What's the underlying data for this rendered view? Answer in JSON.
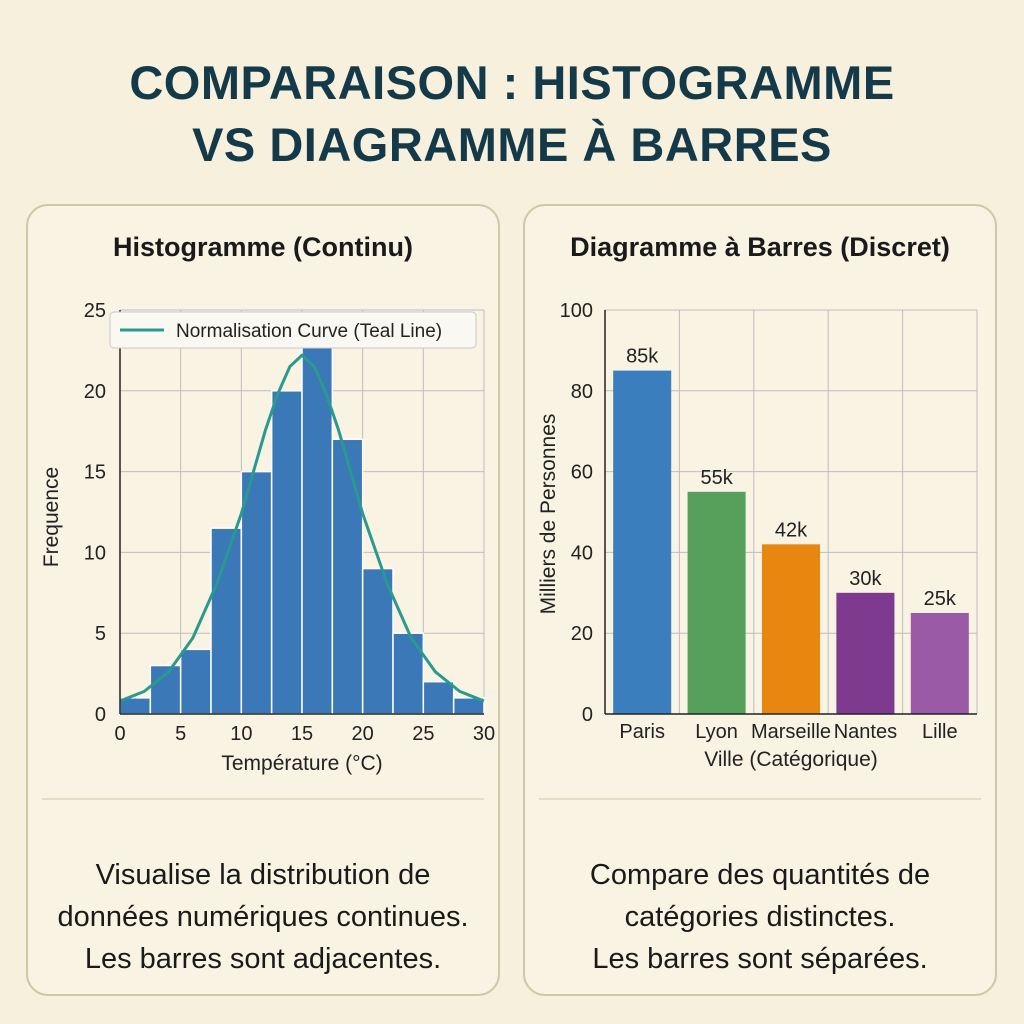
{
  "title": {
    "line1": "COMPARAISON : HISTOGRAMME",
    "line2": "VS DIAGRAMME À BARRES"
  },
  "left_panel": {
    "title": "Histogramme (Continu)",
    "description": [
      "Visualise la distribution de",
      "données numériques continues.",
      "Les barres sont adjacentes."
    ]
  },
  "right_panel": {
    "title": "Diagramme à Barres (Discret)",
    "description": [
      "Compare des quantités de",
      "catégories distinctes.",
      "Les barres sont séparées."
    ]
  },
  "colors": {
    "background": "#f6f0dc",
    "title": "#143a4a",
    "hist_bar": "#3a78b8",
    "curve": "#2a9a8e"
  },
  "chart_data": [
    {
      "type": "bar",
      "subtype": "histogram",
      "bin_edges": [
        0,
        2.5,
        5,
        7.5,
        10,
        12.5,
        15,
        17.5,
        20,
        22.5,
        25,
        27.5,
        30
      ],
      "values": [
        1,
        3,
        4,
        11.5,
        15,
        20,
        23,
        17,
        9,
        5,
        2,
        1
      ],
      "curve": {
        "name": "Normalisation Curve (Teal Line)",
        "x": [
          0,
          2,
          4,
          6,
          8,
          10,
          12,
          13,
          14,
          15,
          16,
          17,
          18,
          20,
          22,
          24,
          26,
          28,
          30
        ],
        "y": [
          0.8,
          1.4,
          2.6,
          4.7,
          8.1,
          12.4,
          17.6,
          19.8,
          21.5,
          22.2,
          21.5,
          19.8,
          17.6,
          12.4,
          8.1,
          4.7,
          2.6,
          1.4,
          0.8
        ]
      },
      "xlabel": "Température (°C)",
      "ylabel": "Frequence",
      "xlim": [
        0,
        30
      ],
      "ylim": [
        0,
        25
      ],
      "xticks": [
        0,
        5,
        10,
        15,
        20,
        25,
        30
      ],
      "yticks": [
        0,
        5,
        10,
        15,
        20,
        25
      ],
      "grid": true,
      "legend_position": "top"
    },
    {
      "type": "bar",
      "categories": [
        "Paris",
        "Lyon",
        "Marseille",
        "Nantes",
        "Lille"
      ],
      "values": [
        85,
        55,
        42,
        30,
        25
      ],
      "data_labels": [
        "85k",
        "55k",
        "42k",
        "30k",
        "25k"
      ],
      "colors": [
        "#3a7ebd",
        "#57a05c",
        "#e8870f",
        "#7e3a8e",
        "#9a5aa6"
      ],
      "xlabel": "Ville (Catégorique)",
      "ylabel": "Milliers de Personnes",
      "ylim": [
        0,
        100
      ],
      "yticks": [
        0,
        20,
        40,
        60,
        80,
        100
      ],
      "grid": true
    }
  ]
}
